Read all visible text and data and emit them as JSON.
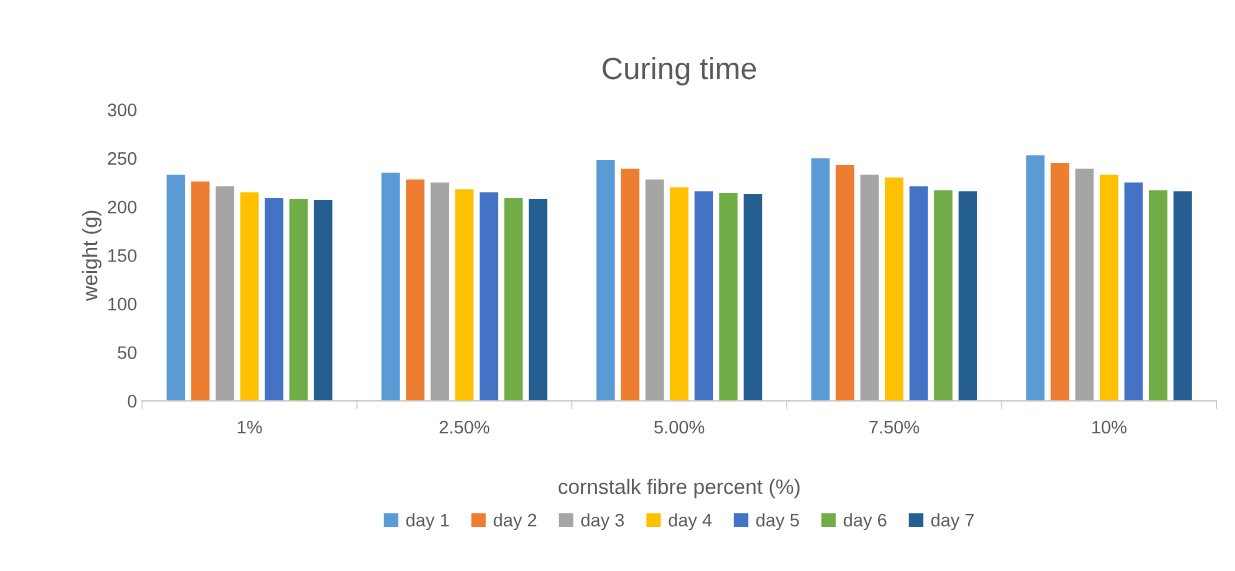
{
  "chart_data": {
    "type": "bar",
    "title": "Curing time",
    "xlabel": "cornstalk fibre percent (%)",
    "ylabel": "weight (g)",
    "categories": [
      "1%",
      "2.50%",
      "5.00%",
      "7.50%",
      "10%"
    ],
    "series": [
      {
        "name": "day 1",
        "color": "#5b9bd5",
        "values": [
          233,
          235,
          248,
          250,
          253
        ]
      },
      {
        "name": "day 2",
        "color": "#ed7d31",
        "values": [
          226,
          228,
          239,
          243,
          245
        ]
      },
      {
        "name": "day 3",
        "color": "#a5a5a5",
        "values": [
          221,
          225,
          228,
          233,
          239
        ]
      },
      {
        "name": "day 4",
        "color": "#ffc000",
        "values": [
          215,
          218,
          220,
          230,
          233
        ]
      },
      {
        "name": "day 5",
        "color": "#4472c4",
        "values": [
          209,
          215,
          216,
          221,
          225
        ]
      },
      {
        "name": "day 6",
        "color": "#70ad47",
        "values": [
          208,
          209,
          214,
          217,
          217
        ]
      },
      {
        "name": "day 7",
        "color": "#255e91",
        "values": [
          207,
          208,
          213,
          216,
          216
        ]
      }
    ],
    "ylim": [
      0,
      300
    ],
    "yticks": [
      0,
      50,
      100,
      150,
      200,
      250,
      300
    ],
    "grid": false,
    "legend": "bottom"
  }
}
